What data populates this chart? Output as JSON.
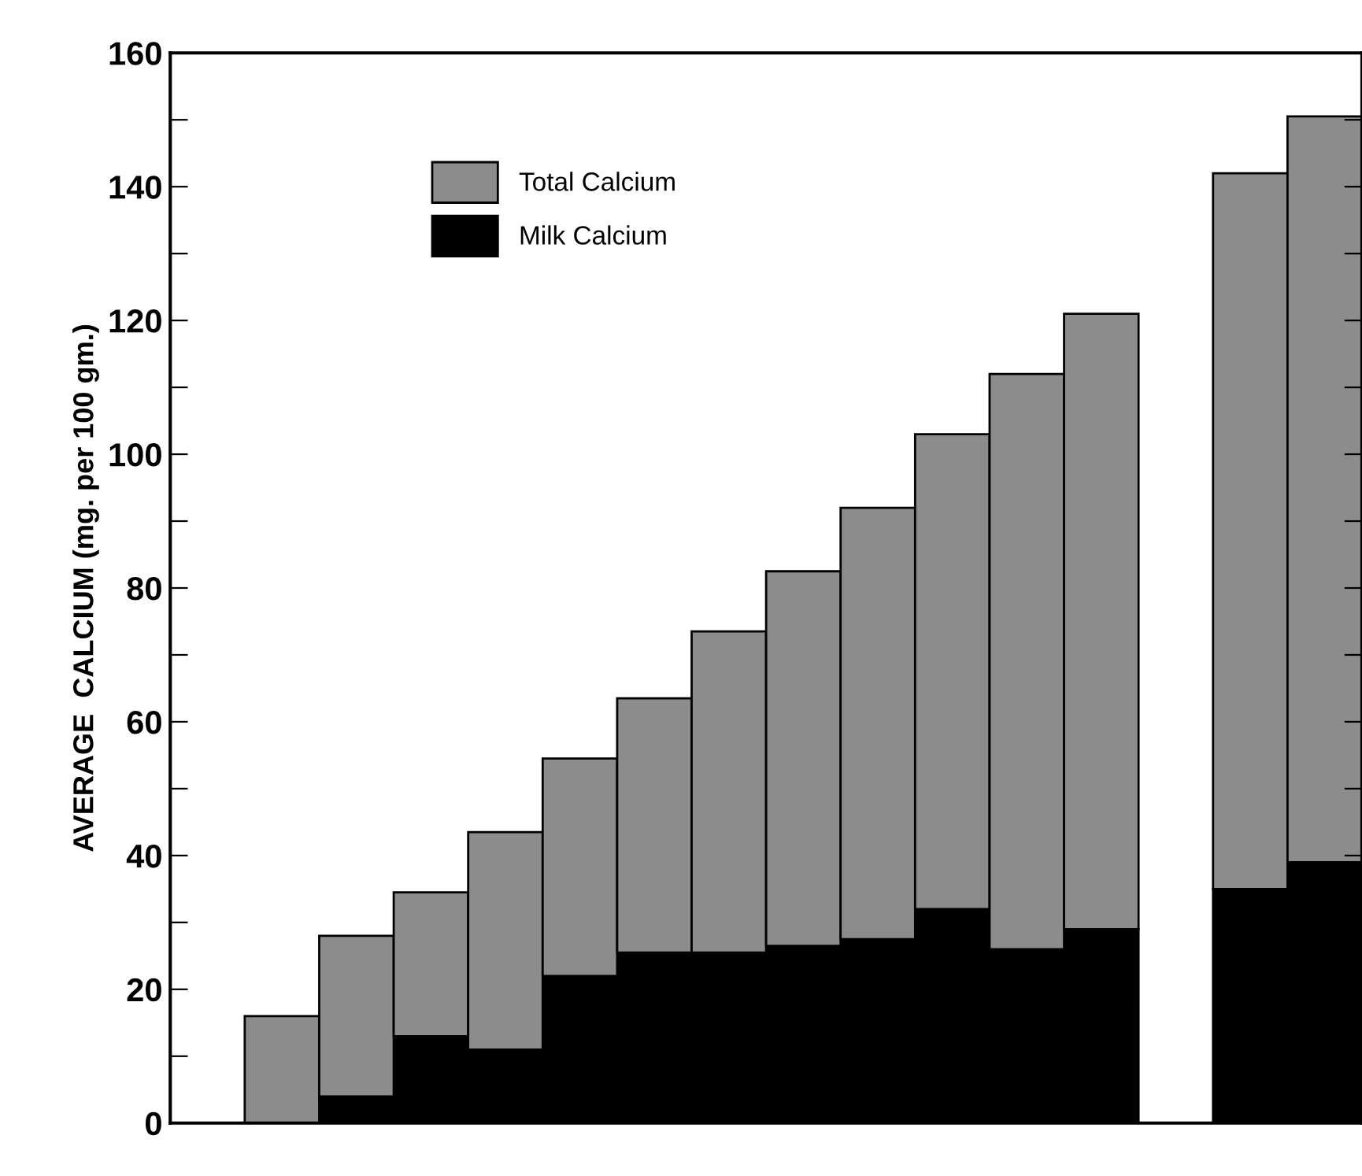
{
  "chart_data": {
    "type": "bar",
    "stacked": true,
    "ylabel": "AVERAGE  CALCIUM (mg. per 100 gm.)",
    "categories": [
      null,
      null,
      null,
      null,
      null,
      null,
      null,
      null,
      null,
      null,
      null,
      null,
      null,
      null,
      null,
      null
    ],
    "series": [
      {
        "name": "Milk Calcium",
        "color": "#000000",
        "values": [
          null,
          0,
          4,
          13,
          11,
          22,
          25.5,
          25.5,
          26.5,
          27.5,
          32,
          26,
          29,
          null,
          35,
          39
        ]
      },
      {
        "name": "Total Calcium",
        "color": "#8c8c8c",
        "values": [
          null,
          16,
          24,
          21.5,
          32.5,
          32.5,
          38,
          48,
          56,
          64.5,
          71,
          86,
          92,
          null,
          107,
          111.5
        ]
      }
    ],
    "ylim": [
      0,
      160
    ],
    "yticks": [
      0,
      {
        "value": 10,
        "label": null
      },
      20,
      {
        "value": 30,
        "label": null
      },
      40,
      {
        "value": 50,
        "label": null
      },
      60,
      {
        "value": 70,
        "label": null
      },
      80,
      {
        "value": 90,
        "label": null
      },
      100,
      {
        "value": 110,
        "label": null
      },
      120,
      {
        "value": 130,
        "label": null
      },
      140,
      {
        "value": 150,
        "label": null
      },
      160
    ],
    "legend": "top left",
    "grid": false
  }
}
